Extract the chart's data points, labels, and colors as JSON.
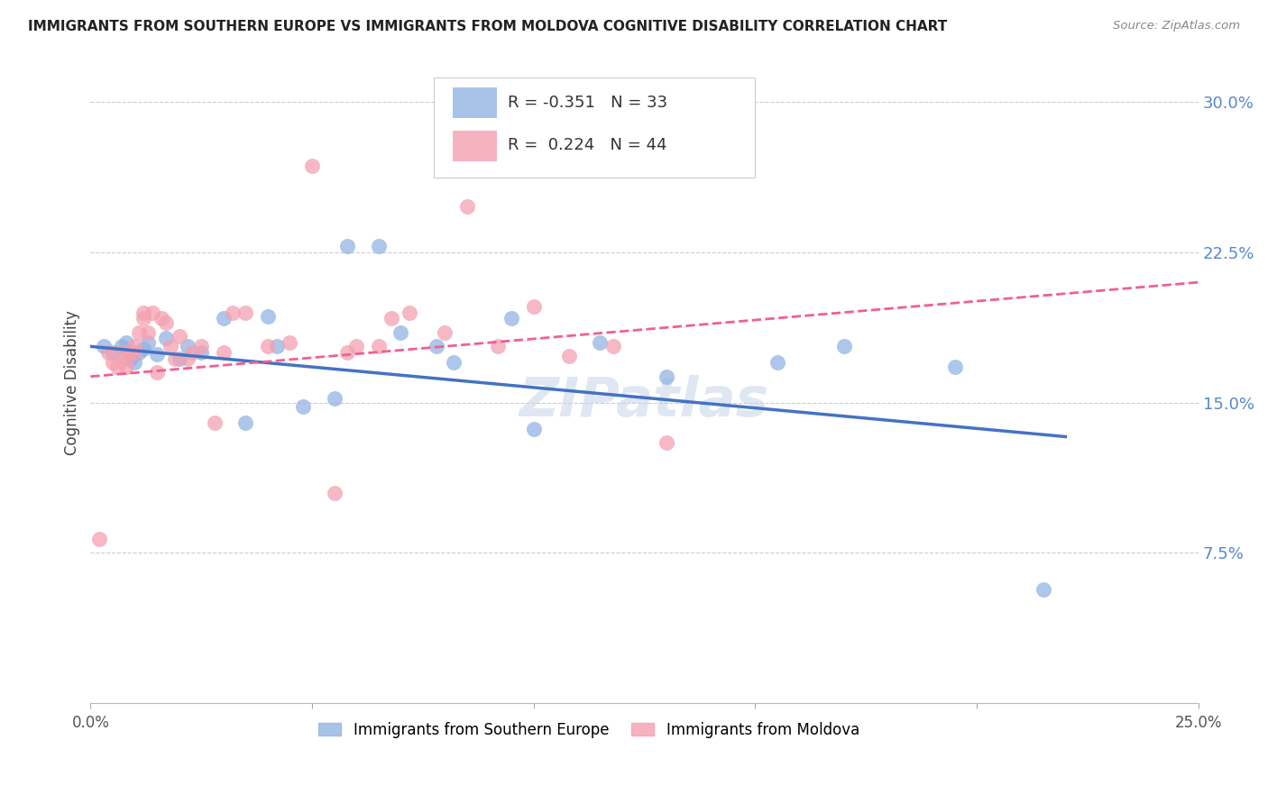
{
  "title": "IMMIGRANTS FROM SOUTHERN EUROPE VS IMMIGRANTS FROM MOLDOVA COGNITIVE DISABILITY CORRELATION CHART",
  "source": "Source: ZipAtlas.com",
  "ylabel": "Cognitive Disability",
  "ytick_labels": [
    "30.0%",
    "22.5%",
    "15.0%",
    "7.5%"
  ],
  "ytick_values": [
    0.3,
    0.225,
    0.15,
    0.075
  ],
  "xlim": [
    0.0,
    0.25
  ],
  "ylim": [
    0.0,
    0.32
  ],
  "legend_blue_label": "Immigrants from Southern Europe",
  "legend_pink_label": "Immigrants from Moldova",
  "R_blue": -0.351,
  "N_blue": 33,
  "R_pink": 0.224,
  "N_pink": 44,
  "blue_color": "#92B4E3",
  "pink_color": "#F4A0B0",
  "line_blue": "#4472C4",
  "line_pink": "#F06090",
  "watermark": "ZIPatlas",
  "blue_scatter_x": [
    0.003,
    0.005,
    0.007,
    0.008,
    0.009,
    0.01,
    0.011,
    0.012,
    0.013,
    0.015,
    0.017,
    0.02,
    0.022,
    0.025,
    0.03,
    0.035,
    0.04,
    0.042,
    0.048,
    0.055,
    0.058,
    0.065,
    0.07,
    0.078,
    0.082,
    0.095,
    0.1,
    0.115,
    0.13,
    0.155,
    0.17,
    0.195,
    0.215
  ],
  "blue_scatter_y": [
    0.178,
    0.175,
    0.178,
    0.18,
    0.172,
    0.17,
    0.175,
    0.177,
    0.18,
    0.174,
    0.182,
    0.172,
    0.178,
    0.175,
    0.192,
    0.14,
    0.193,
    0.178,
    0.148,
    0.152,
    0.228,
    0.228,
    0.185,
    0.178,
    0.17,
    0.192,
    0.137,
    0.18,
    0.163,
    0.17,
    0.178,
    0.168,
    0.057
  ],
  "pink_scatter_x": [
    0.002,
    0.004,
    0.005,
    0.006,
    0.007,
    0.008,
    0.008,
    0.009,
    0.01,
    0.01,
    0.011,
    0.012,
    0.012,
    0.013,
    0.014,
    0.015,
    0.016,
    0.017,
    0.018,
    0.019,
    0.02,
    0.022,
    0.023,
    0.025,
    0.028,
    0.03,
    0.032,
    0.035,
    0.04,
    0.045,
    0.05,
    0.055,
    0.058,
    0.06,
    0.065,
    0.068,
    0.072,
    0.08,
    0.085,
    0.092,
    0.1,
    0.108,
    0.118,
    0.13
  ],
  "pink_scatter_y": [
    0.082,
    0.175,
    0.17,
    0.168,
    0.175,
    0.172,
    0.168,
    0.175,
    0.175,
    0.178,
    0.185,
    0.192,
    0.195,
    0.185,
    0.195,
    0.165,
    0.192,
    0.19,
    0.178,
    0.172,
    0.183,
    0.172,
    0.175,
    0.178,
    0.14,
    0.175,
    0.195,
    0.195,
    0.178,
    0.18,
    0.268,
    0.105,
    0.175,
    0.178,
    0.178,
    0.192,
    0.195,
    0.185,
    0.248,
    0.178,
    0.198,
    0.173,
    0.178,
    0.13
  ],
  "blue_line_x": [
    0.0,
    0.22
  ],
  "blue_line_y": [
    0.178,
    0.133
  ],
  "pink_line_x": [
    0.0,
    0.25
  ],
  "pink_line_y": [
    0.163,
    0.21
  ]
}
